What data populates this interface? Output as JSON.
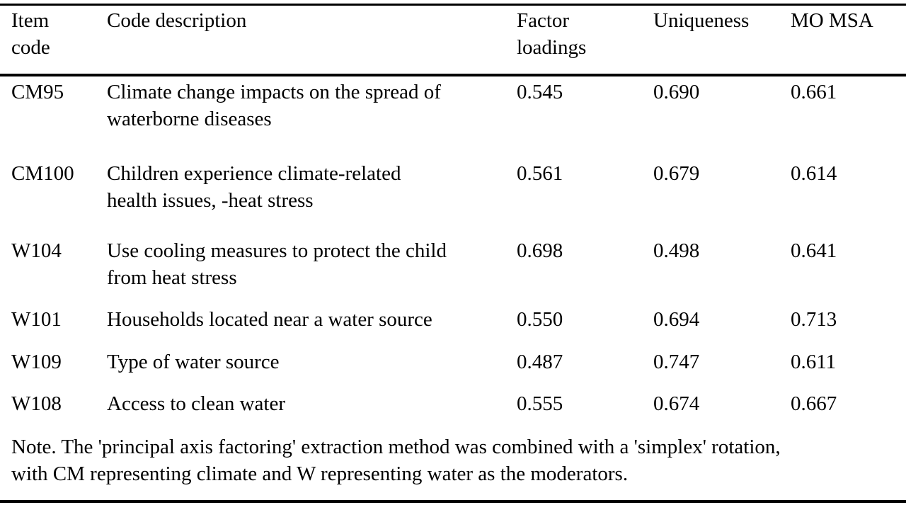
{
  "table": {
    "headers": {
      "item_code": "Item\ncode",
      "code_description": "Code description",
      "factor_loadings": "Factor\nloadings",
      "uniqueness": "Uniqueness",
      "mo_msa": "MO MSA"
    },
    "rows": [
      {
        "code": "CM95",
        "description": "Climate change impacts on the spread of\nwaterborne diseases",
        "factor_loading": "0.545",
        "uniqueness": "0.690",
        "mo_msa": "0.661"
      },
      {
        "code": "CM100",
        "description": "Children experience climate-related\nhealth issues, -heat stress",
        "factor_loading": "0.561",
        "uniqueness": "0.679",
        "mo_msa": "0.614"
      },
      {
        "code": "W104",
        "description": "Use cooling measures to protect the child\nfrom heat stress",
        "factor_loading": "0.698",
        "uniqueness": "0.498",
        "mo_msa": "0.641"
      },
      {
        "code": "W101",
        "description": "Households located near a water source",
        "factor_loading": "0.550",
        "uniqueness": "0.694",
        "mo_msa": "0.713"
      },
      {
        "code": "W109",
        "description": "Type of water source",
        "factor_loading": "0.487",
        "uniqueness": "0.747",
        "mo_msa": "0.611"
      },
      {
        "code": "W108",
        "description": "Access to clean water",
        "factor_loading": "0.555",
        "uniqueness": "0.674",
        "mo_msa": "0.667"
      }
    ],
    "note": "Note. The 'principal axis factoring' extraction method was combined with a 'simplex' rotation,\nwith CM representing climate and W representing water as the moderators."
  }
}
